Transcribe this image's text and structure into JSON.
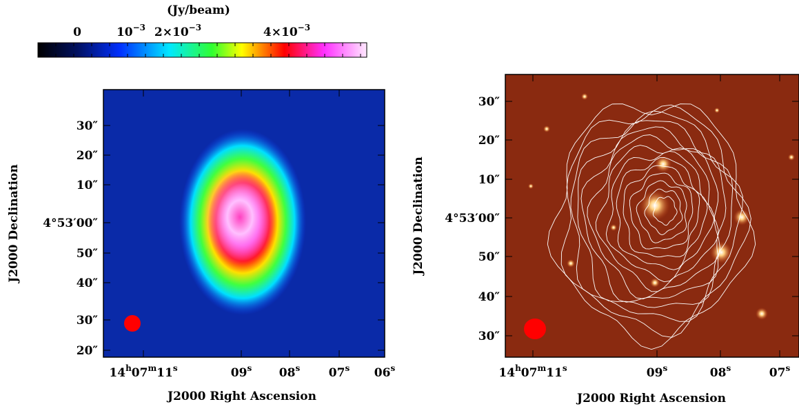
{
  "colorbar": {
    "label": "(Jy/beam)",
    "ticks": [
      [
        "0"
      ],
      [
        "10",
        "−3"
      ],
      [
        "2×10",
        "−3"
      ],
      [
        "4×10",
        "−3"
      ]
    ]
  },
  "panels": [
    {
      "xlabel": "J2000 Right Ascension",
      "ylabel": "J2000 Declination",
      "xticks": [
        [
          "14",
          "h",
          "07",
          "m",
          "11",
          "s"
        ],
        [
          "09",
          "s"
        ],
        [
          "08",
          "s"
        ],
        [
          "07",
          "s"
        ],
        [
          "06",
          "s"
        ]
      ],
      "yticks": [
        "30″",
        "20″",
        "10″",
        "4°53′00″",
        "50″",
        "40″",
        "30″",
        "20″"
      ]
    },
    {
      "xlabel": "J2000 Right Ascension",
      "ylabel": "J2000 Declination",
      "xticks": [
        [
          "14",
          "h",
          "07",
          "m",
          "11",
          "s"
        ],
        [
          "09",
          "s"
        ],
        [
          "08",
          "s"
        ],
        [
          "07",
          "s"
        ]
      ],
      "yticks": [
        "30″",
        "20″",
        "10″",
        "4°53′00″",
        "50″",
        "40″",
        "30″"
      ]
    }
  ]
}
